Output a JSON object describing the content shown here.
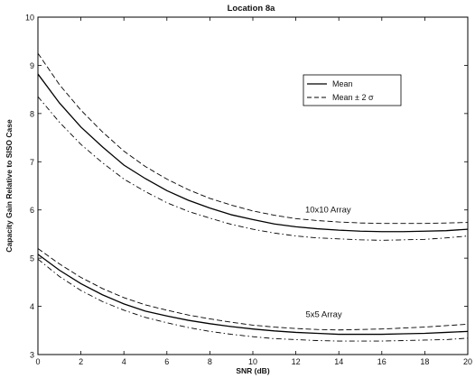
{
  "chart_data": {
    "type": "line",
    "title": "Location 8a",
    "xlabel": "SNR (dB)",
    "ylabel": "Capacity Gain Relative to SISO Case",
    "xlim": [
      0,
      20
    ],
    "ylim": [
      3,
      10
    ],
    "xticks": [
      0,
      2,
      4,
      6,
      8,
      10,
      12,
      14,
      16,
      18,
      20
    ],
    "yticks": [
      3,
      4,
      5,
      6,
      7,
      8,
      9,
      10
    ],
    "grid": false,
    "legend": {
      "placement": "top-right",
      "entries": [
        {
          "label": "Mean",
          "style": "solid"
        },
        {
          "label": "Mean ± 2 σ",
          "style": "dashed"
        }
      ]
    },
    "annotations": [
      {
        "text": "10x10 Array",
        "x": 13.5,
        "y": 5.95
      },
      {
        "text": "5x5 Array",
        "x": 13.3,
        "y": 3.78
      }
    ],
    "x": [
      0,
      1,
      2,
      3,
      4,
      5,
      6,
      7,
      8,
      9,
      10,
      11,
      12,
      13,
      14,
      15,
      16,
      17,
      18,
      19,
      20
    ],
    "series": [
      {
        "group": "10x10 Array",
        "role": "mean",
        "style": "solid",
        "values": [
          8.82,
          8.22,
          7.72,
          7.31,
          6.93,
          6.65,
          6.4,
          6.2,
          6.04,
          5.9,
          5.8,
          5.71,
          5.65,
          5.61,
          5.58,
          5.56,
          5.55,
          5.55,
          5.56,
          5.57,
          5.6
        ]
      },
      {
        "group": "10x10 Array",
        "role": "mean+2sigma",
        "style": "dashed",
        "values": [
          9.25,
          8.6,
          8.07,
          7.62,
          7.22,
          6.9,
          6.64,
          6.42,
          6.24,
          6.1,
          5.98,
          5.89,
          5.82,
          5.78,
          5.75,
          5.73,
          5.72,
          5.72,
          5.72,
          5.73,
          5.74
        ]
      },
      {
        "group": "10x10 Array",
        "role": "mean-2sigma",
        "style": "dash-dot",
        "values": [
          8.35,
          7.82,
          7.36,
          6.98,
          6.64,
          6.38,
          6.15,
          5.97,
          5.83,
          5.7,
          5.6,
          5.52,
          5.46,
          5.42,
          5.4,
          5.38,
          5.37,
          5.38,
          5.39,
          5.42,
          5.46
        ]
      },
      {
        "group": "5x5 Array",
        "role": "mean",
        "style": "solid",
        "values": [
          5.08,
          4.75,
          4.47,
          4.24,
          4.05,
          3.9,
          3.8,
          3.71,
          3.64,
          3.58,
          3.53,
          3.49,
          3.46,
          3.44,
          3.42,
          3.42,
          3.42,
          3.43,
          3.44,
          3.46,
          3.48
        ]
      },
      {
        "group": "5x5 Array",
        "role": "mean+2sigma",
        "style": "dashed",
        "values": [
          5.2,
          4.88,
          4.6,
          4.37,
          4.18,
          4.03,
          3.92,
          3.82,
          3.74,
          3.67,
          3.61,
          3.57,
          3.54,
          3.52,
          3.51,
          3.52,
          3.53,
          3.55,
          3.57,
          3.6,
          3.63
        ]
      },
      {
        "group": "5x5 Array",
        "role": "mean-2sigma",
        "style": "dash-dot",
        "values": [
          4.98,
          4.62,
          4.33,
          4.1,
          3.92,
          3.77,
          3.66,
          3.56,
          3.48,
          3.42,
          3.37,
          3.33,
          3.31,
          3.29,
          3.28,
          3.28,
          3.28,
          3.29,
          3.3,
          3.31,
          3.34
        ]
      }
    ]
  }
}
